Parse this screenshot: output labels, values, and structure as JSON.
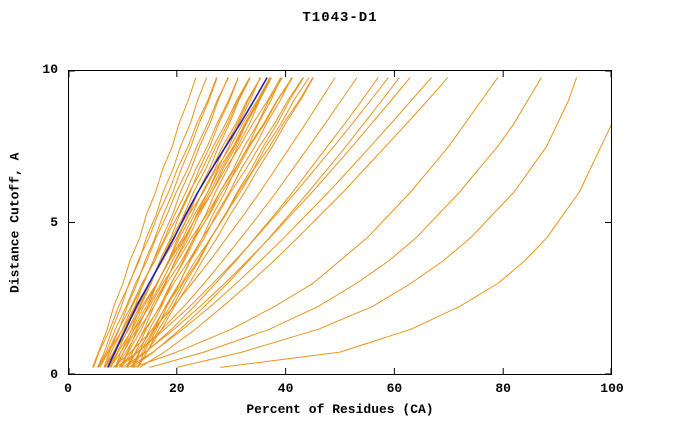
{
  "chart_data": {
    "type": "line",
    "title": "T1043-D1",
    "xlabel": "Percent of Residues (CA)",
    "ylabel": "Distance Cutoff, A",
    "xlim": [
      0,
      100
    ],
    "ylim": [
      0,
      10
    ],
    "xticks": [
      0,
      20,
      40,
      60,
      80,
      100
    ],
    "yticks": [
      0,
      5,
      10
    ],
    "grid": false,
    "legend": "none",
    "palette": {
      "model": "#e8951e",
      "best": "#1f1fb4"
    },
    "cutoffs": [
      0.25,
      0.75,
      1.5,
      2.25,
      3,
      3.75,
      4.5,
      5.25,
      6,
      6.75,
      7.5,
      8.25,
      9,
      9.75
    ],
    "series": [
      {
        "group": "model",
        "x": [
          4.5,
          5.6,
          7.2,
          8.4,
          10.1,
          11.4,
          13.2,
          14.4,
          16.1,
          17.4,
          19.2,
          20.4,
          22.1,
          23.5
        ]
      },
      {
        "group": "model",
        "x": [
          5.4,
          6.7,
          8.1,
          9.8,
          11.2,
          13.1,
          14.4,
          16.2,
          17.5,
          19.3,
          20.7,
          22.5,
          23.8,
          25.5
        ]
      },
      {
        "group": "model",
        "x": [
          6.6,
          7.6,
          9.4,
          10.9,
          12.7,
          14.2,
          16,
          17.5,
          19.3,
          20.8,
          22.6,
          24.1,
          25.9,
          27.4
        ]
      },
      {
        "group": "model",
        "x": [
          7.5,
          8.8,
          10.4,
          12.3,
          13.8,
          15.7,
          17.3,
          19.2,
          20.7,
          22.6,
          24.2,
          26.1,
          27.6,
          29.4
        ]
      },
      {
        "group": "model",
        "x": [
          8.7,
          9.7,
          11.7,
          13.3,
          15.3,
          16.9,
          18.9,
          20.5,
          22.5,
          24.1,
          26.1,
          27.7,
          29.7,
          31.3
        ]
      },
      {
        "group": "model",
        "x": [
          9.5,
          11,
          12.7,
          14.7,
          16.4,
          18.5,
          20.2,
          22.2,
          23.9,
          26,
          27.7,
          29.7,
          31.4,
          33.5
        ]
      },
      {
        "group": "model",
        "x": [
          10.8,
          11.9,
          14,
          15.8,
          17.9,
          19.7,
          21.8,
          23.6,
          25.7,
          27.5,
          29.6,
          31.4,
          33.5,
          35.3
        ]
      },
      {
        "group": "model",
        "x": [
          11.6,
          13.1,
          15,
          17.2,
          19,
          21.2,
          23.1,
          25.3,
          27.1,
          29.3,
          31.2,
          33.4,
          35.2,
          37.4
        ]
      },
      {
        "group": "model",
        "x": [
          12.8,
          14,
          16.3,
          18.2,
          20.5,
          22.4,
          24.7,
          26.6,
          28.9,
          30.8,
          33.1,
          35,
          37.3,
          39.2
        ]
      },
      {
        "group": "model",
        "x": [
          5.5,
          7,
          8.7,
          10.7,
          12.4,
          14.5,
          16.2,
          18.2,
          19.9,
          22,
          23.7,
          25.7,
          27.4,
          29.5
        ]
      },
      {
        "group": "model",
        "x": [
          6.8,
          7.9,
          10,
          11.8,
          13.9,
          15.7,
          17.8,
          19.6,
          21.7,
          23.5,
          25.6,
          27.4,
          29.5,
          31.3
        ]
      },
      {
        "group": "model",
        "x": [
          7.6,
          9.1,
          11,
          13.2,
          15,
          17.2,
          19.1,
          21.3,
          23.1,
          25.3,
          27.2,
          29.4,
          31.2,
          33.4
        ]
      },
      {
        "group": "model",
        "x": [
          8.6,
          10.2,
          12.1,
          14.4,
          16.3,
          18.6,
          20.5,
          22.8,
          24.7,
          27,
          28.9,
          31.2,
          33.1,
          35.4
        ]
      },
      {
        "group": "model",
        "x": [
          9.8,
          11.1,
          13.5,
          15.4,
          17.8,
          19.8,
          22.2,
          24.1,
          26.5,
          28.5,
          30.9,
          32.8,
          35.2,
          37.2
        ]
      },
      {
        "group": "model",
        "x": [
          10.7,
          12.4,
          14.4,
          16.9,
          18.9,
          21.4,
          23.4,
          25.9,
          27.9,
          30.4,
          32.4,
          34.9,
          36.9,
          39.4
        ]
      },
      {
        "group": "model",
        "x": [
          11.9,
          13.2,
          15.8,
          17.9,
          20.4,
          22.5,
          25.1,
          27.2,
          29.7,
          31.8,
          34.4,
          36.5,
          39,
          41.1
        ]
      },
      {
        "group": "model",
        "x": [
          12.7,
          14.5,
          16.7,
          19.3,
          21.5,
          24.1,
          26.3,
          28.9,
          31.1,
          33.7,
          35.9,
          38.5,
          40.7,
          43.3
        ]
      },
      {
        "group": "model",
        "x": [
          8.8,
          10.7,
          13,
          15.8,
          18.1,
          20.9,
          23.2,
          26,
          28.3,
          31.1,
          33.4,
          36.2,
          38.5,
          41.3
        ]
      },
      {
        "group": "model",
        "x": [
          6.7,
          8.4,
          10.4,
          12.9,
          14.9,
          17.4,
          19.4,
          21.9,
          23.9,
          26.4,
          28.4,
          30.9,
          32.9,
          35.4
        ]
      },
      {
        "group": "model",
        "x": [
          7.9,
          9.2,
          11.8,
          13.9,
          16.4,
          18.5,
          21.1,
          23.2,
          25.7,
          27.8,
          30.4,
          32.5,
          35,
          37.1
        ]
      },
      {
        "group": "model",
        "x": [
          5.6,
          7.3,
          9.3,
          11.6,
          13.6,
          16,
          18,
          20.3,
          22.3,
          24.7,
          26.7,
          29,
          31,
          33.4
        ]
      },
      {
        "group": "model",
        "x": [
          9.8,
          11.7,
          14.2,
          17,
          19.4,
          22.2,
          24.7,
          27.5,
          29.9,
          32.7,
          35.2,
          38,
          40.4,
          43.2
        ]
      },
      {
        "group": "model",
        "x": [
          10.9,
          12.6,
          15.5,
          18,
          20.9,
          23.4,
          26.3,
          28.8,
          31.7,
          34.2,
          37.1,
          39.6,
          42.5,
          45
        ]
      },
      {
        "group": "model",
        "x": [
          4.7,
          5.7,
          7.7,
          9.3,
          11.3,
          12.9,
          14.9,
          16.5,
          18.5,
          20.1,
          22.1,
          23.7,
          25.7,
          27.3
        ]
      },
      {
        "group": "model",
        "x": [
          11.8,
          13.7,
          16,
          18.8,
          21.1,
          23.9,
          26.2,
          29,
          31.3,
          34.1,
          36.4,
          39.2,
          41.5,
          44.3
        ]
      },
      {
        "group": "model",
        "x": [
          6.9,
          8.5,
          11.2,
          13.6,
          16.3,
          18.7,
          21.4,
          23.8,
          26.5,
          28.9,
          31.6,
          34,
          36.7,
          39.1
        ]
      },
      {
        "group": "model",
        "x": [
          7.8,
          9.7,
          12.2,
          15,
          17.4,
          20.2,
          22.7,
          25.5,
          27.9,
          30.7,
          33.2,
          36,
          38.4,
          41.2
        ]
      },
      {
        "group": "model",
        "x": [
          8.9,
          10.2,
          12.6,
          14.7,
          17.1,
          19.2,
          21.6,
          23.7,
          26.1,
          28.2,
          30.6,
          32.7,
          35.1,
          37.2
        ]
      },
      {
        "group": "model",
        "x": [
          5.9,
          7.4,
          10.1,
          12.3,
          15,
          17.3,
          20,
          22.2,
          24.9,
          27.2,
          29.9,
          32.1,
          34.8,
          37.1
        ]
      },
      {
        "group": "model",
        "x": [
          12.9,
          14.5,
          17.2,
          19.6,
          22.3,
          24.7,
          27.4,
          29.8,
          32.5,
          34.9,
          37.6,
          40,
          42.7,
          45.1
        ]
      },
      {
        "group": "model",
        "x": [
          8.3,
          11.5,
          15.6,
          19.4,
          22.8,
          26.1,
          29.2,
          32.3,
          35.3,
          38.1,
          40.9,
          43.7,
          46.4,
          49.1
        ]
      },
      {
        "group": "model",
        "x": [
          9.4,
          12.9,
          17.3,
          21.3,
          25,
          28.5,
          31.8,
          35.1,
          38.3,
          41.3,
          44.3,
          47.3,
          50.2,
          53.1
        ]
      },
      {
        "group": "model",
        "x": [
          10.6,
          14.3,
          19,
          23.2,
          27.1,
          30.9,
          34.4,
          37.9,
          41.3,
          44.5,
          47.7,
          50.9,
          54,
          57
        ]
      },
      {
        "group": "model",
        "x": [
          8.8,
          12.8,
          17.8,
          22.4,
          26.6,
          30.7,
          34.5,
          38.2,
          41.9,
          45.4,
          48.9,
          52.3,
          55.6,
          58.9
        ]
      },
      {
        "group": "model",
        "x": [
          11.8,
          15.7,
          20.6,
          25.1,
          29.3,
          33.2,
          37,
          40.6,
          44.2,
          47.7,
          51.1,
          54.4,
          57.7,
          60.9
        ]
      },
      {
        "group": "model",
        "x": [
          10,
          14.2,
          19.5,
          24.3,
          28.8,
          33,
          37.1,
          41,
          44.9,
          48.6,
          52.3,
          55.8,
          59.4,
          62.9
        ]
      },
      {
        "group": "model",
        "x": [
          11.1,
          15.6,
          21.1,
          26.2,
          30.9,
          35.4,
          39.7,
          43.8,
          47.9,
          51.8,
          55.6,
          59.4,
          63.1,
          66.8
        ]
      },
      {
        "group": "model",
        "x": [
          13.2,
          17.7,
          23.4,
          28.5,
          33.3,
          37.9,
          42.2,
          46.4,
          50.6,
          54.5,
          58.4,
          62.3,
          66.1,
          69.8
        ]
      },
      {
        "group": "model",
        "x": [
          12,
          20,
          30,
          38,
          45,
          50,
          55,
          59,
          63,
          66.5,
          70,
          73,
          76,
          79
        ]
      },
      {
        "group": "model",
        "x": [
          15,
          25,
          37,
          46,
          53,
          59,
          64,
          68,
          72,
          75.5,
          79,
          82,
          84.5,
          87
        ]
      },
      {
        "group": "model",
        "x": [
          20,
          32,
          46,
          56,
          63,
          69,
          74,
          78,
          82,
          85,
          88,
          90,
          92,
          93.5
        ]
      },
      {
        "group": "model",
        "x": [
          28,
          50,
          63,
          72,
          79,
          84,
          88,
          91,
          94,
          96,
          98,
          100,
          100,
          100
        ]
      },
      {
        "group": "best",
        "x": [
          7.3,
          8.6,
          10.6,
          12.6,
          14.9,
          17.2,
          19.5,
          21.6,
          23.9,
          26.4,
          29,
          31.7,
          34.2,
          36.6
        ]
      }
    ]
  }
}
